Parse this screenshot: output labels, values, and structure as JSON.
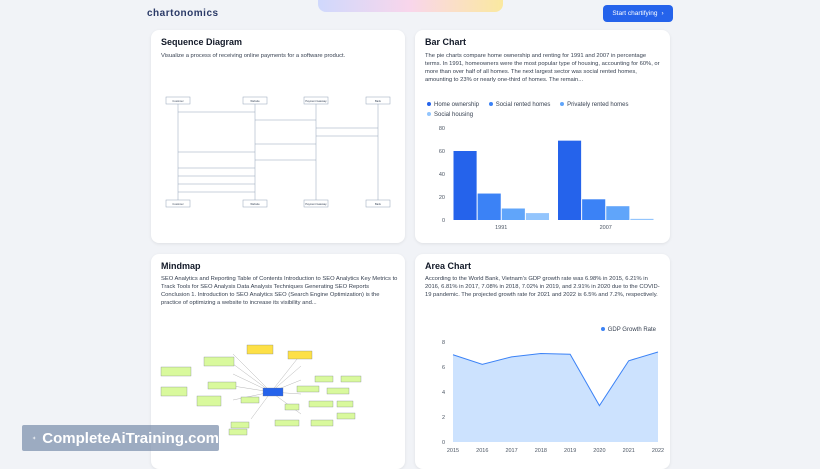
{
  "header": {
    "logo_text": "chartonomics",
    "start_button_label": "Start chartifying"
  },
  "cards": {
    "sequence": {
      "title": "Sequence Diagram",
      "description": "Visualize a process of receiving online payments for a software product.",
      "participants": [
        "Customer",
        "Website",
        "Payment Gateway",
        "Bank"
      ]
    },
    "bar": {
      "title": "Bar Chart",
      "description": "The pie charts compare home ownership and renting for 1991 and 2007 in percentage terms. In 1991, homeowners were the most popular type of housing, accounting for 60%, or more than over half of all homes. The next largest sector was social rented homes, amounting to 23% or nearly one-third of homes. The remain..."
    },
    "mindmap": {
      "title": "Mindmap",
      "description": "SEO Analytics and Reporting Table of Contents Introduction to SEO Analytics Key Metrics to Track Tools for SEO Analysis Data Analysis Techniques Generating SEO Reports Conclusion 1. Introduction to SEO Analytics SEO (Search Engine Optimization) is the practice of optimizing a website to increase its visibility and..."
    },
    "area": {
      "title": "Area Chart",
      "description": "According to the World Bank, Vietnam's GDP growth rate was 6.98% in 2015, 6.21% in 2016, 6.81% in 2017, 7.08% in 2018, 7.02% in 2019, and 2.91% in 2020 due to the COVID-19 pandemic. The projected growth rate for 2021 and 2022 is 6.5% and 7.2%, respectively."
    }
  },
  "chart_data": [
    {
      "type": "bar",
      "title": "",
      "categories": [
        "1991",
        "2007"
      ],
      "series": [
        {
          "name": "Home ownership",
          "values": [
            60,
            69
          ]
        },
        {
          "name": "Social rented homes",
          "values": [
            23,
            18
          ]
        },
        {
          "name": "Privately rented homes",
          "values": [
            10,
            12
          ]
        },
        {
          "name": "Social housing",
          "values": [
            6,
            1
          ]
        }
      ],
      "y_ticks": [
        "80",
        "60",
        "40",
        "20",
        "0"
      ],
      "ylim": [
        0,
        80
      ],
      "colors": [
        "#2563eb",
        "#3b82f6",
        "#60a5fa",
        "#93c5fd"
      ],
      "legend": "top-left",
      "grid": false
    },
    {
      "type": "area",
      "title": "",
      "series": [
        {
          "name": "GDP Growth Rate",
          "x": [
            "2015",
            "2016",
            "2017",
            "2018",
            "2019",
            "2020",
            "2021",
            "2022"
          ],
          "values": [
            6.98,
            6.21,
            6.81,
            7.08,
            7.02,
            2.91,
            6.5,
            7.2
          ]
        }
      ],
      "y_ticks": [
        "8",
        "6",
        "4",
        "2",
        "0"
      ],
      "ylim": [
        0,
        8
      ],
      "colors": [
        "#3b82f6"
      ],
      "legend": "top-right",
      "grid": false
    }
  ],
  "watermark": "CompleteAiTraining.com"
}
